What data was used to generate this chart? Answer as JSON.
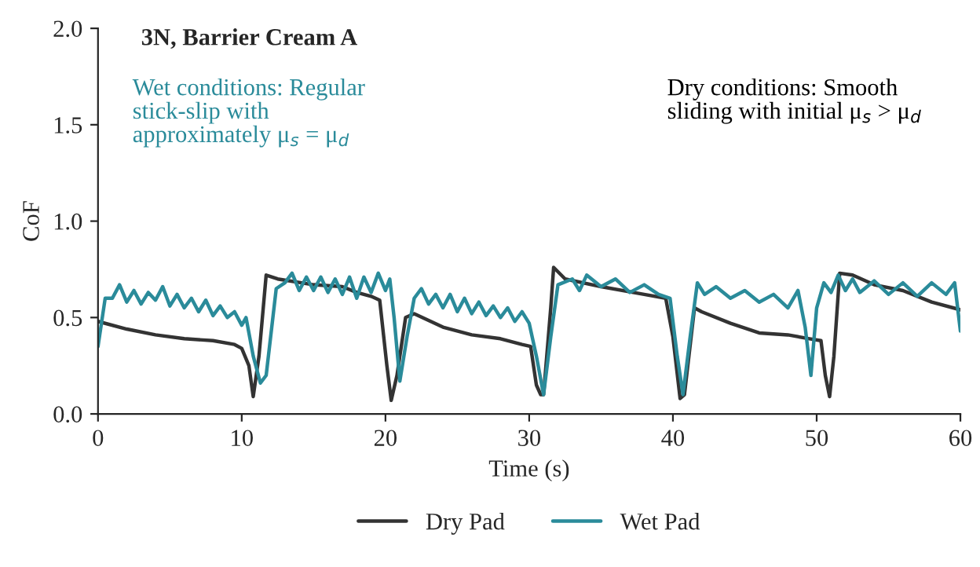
{
  "chart_data": {
    "type": "line",
    "title": "3N, Barrier Cream A",
    "xlabel": "Time (s)",
    "ylabel": "CoF",
    "xlim": [
      0,
      60
    ],
    "xticks": [
      0,
      10,
      20,
      30,
      40,
      50,
      60
    ],
    "ylim": [
      0,
      2
    ],
    "yticks": [
      {
        "value": 0,
        "label": "0.0"
      },
      {
        "value": 0.5,
        "label": "0.5"
      },
      {
        "value": 1,
        "label": "1.0"
      },
      {
        "value": 1.5,
        "label": "1.5"
      },
      {
        "value": 2,
        "label": "2.0"
      }
    ],
    "grid": false,
    "legend": "bottom",
    "marker": "none",
    "line_style": "solid",
    "annotations": [
      "Wet conditions: Regular\nstick-slip with\napproximately μ$_{s}$ = μ$_{d}$",
      "Dry conditions: Smooth\nsliding with initial μ$_{s}$ > μ$_{d}$"
    ],
    "series": [
      {
        "name": "Dry Pad",
        "color": "#333333",
        "x": [
          0,
          2,
          4,
          6,
          8,
          9.5,
          10,
          10.5,
          10.8,
          11.2,
          11.7,
          12.5,
          15,
          17,
          18,
          19,
          19.6,
          20.1,
          20.4,
          20.8,
          21.4,
          22,
          24,
          26,
          28,
          29.5,
          30.1,
          30.5,
          30.8,
          31,
          31.5,
          31.7,
          32.5,
          35,
          38,
          39.5,
          40,
          40.5,
          40.8,
          41.5,
          42,
          44,
          46,
          48,
          49.5,
          50.3,
          50.6,
          50.9,
          51.2,
          51.6,
          52.5,
          54,
          56,
          58,
          60
        ],
        "values": [
          0.48,
          0.44,
          0.41,
          0.39,
          0.38,
          0.36,
          0.34,
          0.25,
          0.09,
          0.3,
          0.72,
          0.7,
          0.67,
          0.66,
          0.63,
          0.61,
          0.59,
          0.25,
          0.07,
          0.2,
          0.5,
          0.52,
          0.45,
          0.41,
          0.39,
          0.36,
          0.35,
          0.15,
          0.1,
          0.1,
          0.55,
          0.76,
          0.7,
          0.66,
          0.62,
          0.6,
          0.4,
          0.08,
          0.1,
          0.55,
          0.53,
          0.47,
          0.42,
          0.41,
          0.39,
          0.38,
          0.2,
          0.09,
          0.3,
          0.73,
          0.72,
          0.67,
          0.64,
          0.58,
          0.54
        ]
      },
      {
        "name": "Wet Pad",
        "color": "#2a8b9a",
        "x": [
          0,
          0.5,
          1,
          1.5,
          2,
          2.5,
          3,
          3.5,
          4,
          4.5,
          5,
          5.5,
          6,
          6.5,
          7,
          7.5,
          8,
          8.5,
          9,
          9.5,
          10,
          10.3,
          10.8,
          11.3,
          11.7,
          12.4,
          13,
          13.5,
          14,
          14.5,
          15,
          15.5,
          16,
          16.5,
          17,
          17.5,
          18,
          18.5,
          19,
          19.5,
          20,
          20.3,
          20.6,
          21,
          21.5,
          22,
          22.5,
          23,
          23.5,
          24,
          24.5,
          25,
          25.5,
          26,
          26.5,
          27,
          27.5,
          28,
          28.5,
          29,
          29.5,
          30,
          30.5,
          31,
          31.5,
          32,
          33,
          33.5,
          34,
          35,
          36,
          37,
          38,
          39,
          39.8,
          40.3,
          40.7,
          41.2,
          41.7,
          42.2,
          43,
          44,
          45,
          46,
          47,
          48,
          48.7,
          49.2,
          49.6,
          50,
          50.5,
          51,
          51.5,
          52,
          52.5,
          53,
          54,
          55,
          56,
          57,
          58,
          59,
          59.6,
          60
        ],
        "values": [
          0.35,
          0.6,
          0.6,
          0.67,
          0.58,
          0.64,
          0.57,
          0.63,
          0.59,
          0.66,
          0.56,
          0.62,
          0.55,
          0.6,
          0.53,
          0.59,
          0.51,
          0.56,
          0.5,
          0.53,
          0.46,
          0.5,
          0.3,
          0.16,
          0.2,
          0.65,
          0.68,
          0.73,
          0.64,
          0.71,
          0.64,
          0.71,
          0.63,
          0.7,
          0.62,
          0.71,
          0.6,
          0.71,
          0.63,
          0.73,
          0.64,
          0.7,
          0.5,
          0.17,
          0.4,
          0.6,
          0.65,
          0.57,
          0.62,
          0.55,
          0.62,
          0.53,
          0.6,
          0.52,
          0.58,
          0.51,
          0.56,
          0.5,
          0.55,
          0.48,
          0.53,
          0.47,
          0.3,
          0.1,
          0.4,
          0.67,
          0.7,
          0.64,
          0.72,
          0.66,
          0.7,
          0.63,
          0.67,
          0.62,
          0.6,
          0.3,
          0.1,
          0.4,
          0.68,
          0.62,
          0.66,
          0.6,
          0.64,
          0.58,
          0.62,
          0.55,
          0.64,
          0.45,
          0.2,
          0.55,
          0.68,
          0.63,
          0.72,
          0.64,
          0.7,
          0.63,
          0.69,
          0.62,
          0.68,
          0.61,
          0.68,
          0.62,
          0.68,
          0.43
        ]
      }
    ]
  }
}
